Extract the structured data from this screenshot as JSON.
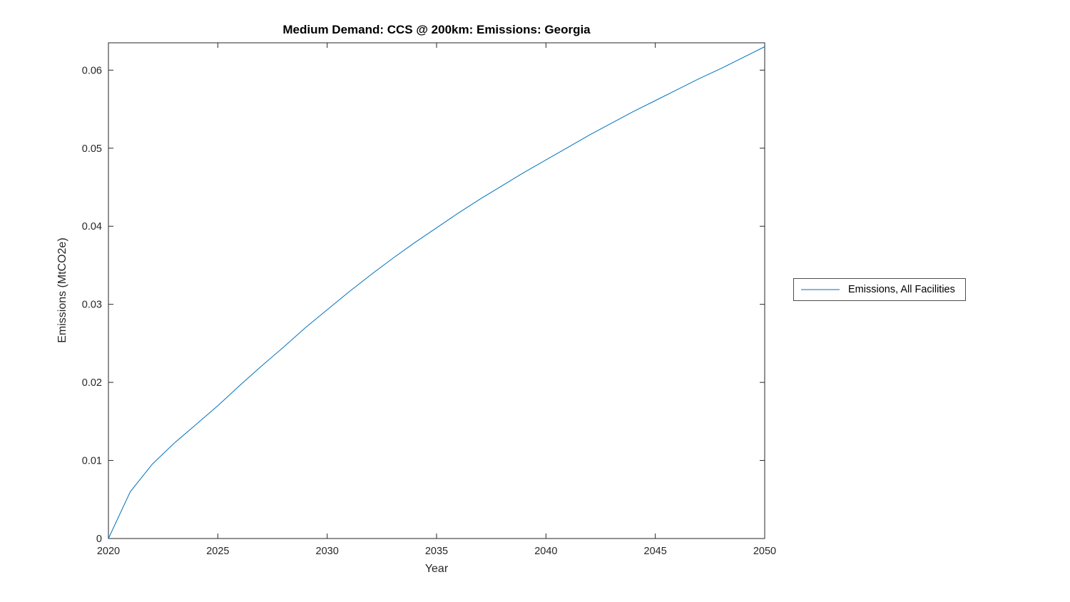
{
  "chart_data": {
    "type": "line",
    "title": "Medium Demand: CCS @ 200km: Emissions: Georgia",
    "xlabel": "Year",
    "ylabel": "Emissions (MtCO2e)",
    "xlim": [
      2020,
      2050
    ],
    "ylim": [
      0,
      0.0635
    ],
    "x_ticks": [
      2020,
      2025,
      2030,
      2035,
      2040,
      2045,
      2050
    ],
    "y_ticks": [
      0,
      0.01,
      0.02,
      0.03,
      0.04,
      0.05,
      0.06
    ],
    "grid": false,
    "legend_position": "right-outside",
    "axis_color": "#262626",
    "series": [
      {
        "name": "Emissions, All Facilities",
        "color": "#0072BD",
        "x": [
          2020,
          2021,
          2022,
          2023,
          2024,
          2025,
          2026,
          2027,
          2028,
          2029,
          2030,
          2031,
          2032,
          2033,
          2034,
          2035,
          2036,
          2037,
          2038,
          2039,
          2040,
          2041,
          2042,
          2043,
          2044,
          2045,
          2046,
          2047,
          2048,
          2049,
          2050
        ],
        "values": [
          0,
          0.006,
          0.0095,
          0.0122,
          0.0146,
          0.017,
          0.0196,
          0.0221,
          0.0245,
          0.027,
          0.0293,
          0.0316,
          0.0338,
          0.0359,
          0.0379,
          0.0398,
          0.0417,
          0.0435,
          0.0452,
          0.0469,
          0.0485,
          0.0501,
          0.0517,
          0.0532,
          0.0547,
          0.0561,
          0.0575,
          0.0589,
          0.0602,
          0.0616,
          0.063
        ]
      }
    ]
  }
}
